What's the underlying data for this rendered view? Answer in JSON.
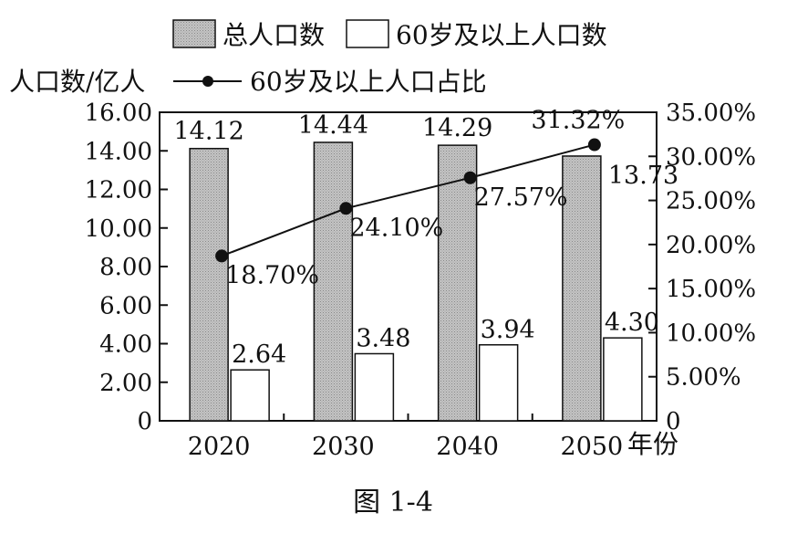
{
  "chart_data": {
    "type": "bar",
    "categories": [
      "2020",
      "2030",
      "2040",
      "2050"
    ],
    "series": [
      {
        "name": "总人口数",
        "values": [
          14.12,
          14.44,
          14.29,
          13.73
        ],
        "labels": [
          "14.12",
          "14.44",
          "14.29",
          "13.73"
        ],
        "axis": "left",
        "kind": "bar",
        "fill": "#b5b5b5"
      },
      {
        "name": "60岁及以上人口数",
        "values": [
          2.64,
          3.48,
          3.94,
          4.3
        ],
        "labels": [
          "2.64",
          "3.48",
          "3.94",
          "4.30"
        ],
        "axis": "left",
        "kind": "bar",
        "fill": "#ffffff"
      },
      {
        "name": "60岁及以上人口占比",
        "values": [
          18.7,
          24.1,
          27.57,
          31.32
        ],
        "labels": [
          "18.70%",
          "24.10%",
          "27.57%",
          "31.32%"
        ],
        "axis": "right",
        "kind": "line",
        "color": "#111111"
      }
    ],
    "ylabel": "人口数/亿人",
    "xlabel": "年份",
    "y_left": {
      "range": [
        0,
        16
      ],
      "ticks": [
        0,
        2,
        4,
        6,
        8,
        10,
        12,
        14,
        16
      ],
      "tick_labels": [
        "0",
        "2.00",
        "4.00",
        "6.00",
        "8.00",
        "10.00",
        "12.00",
        "14.00",
        "16.00"
      ]
    },
    "y_right": {
      "range": [
        0,
        35
      ],
      "ticks": [
        0,
        5,
        10,
        15,
        20,
        25,
        30,
        35
      ],
      "tick_labels": [
        "0",
        "5.00%",
        "10.00%",
        "15.00%",
        "20.00%",
        "25.00%",
        "30.00%",
        "35.00%"
      ]
    },
    "grid": false,
    "legend": "top",
    "caption": "图 1-4"
  }
}
